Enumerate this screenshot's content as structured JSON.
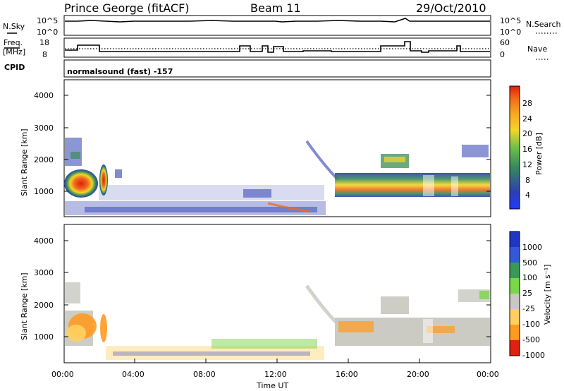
{
  "header": {
    "station": "Prince George (fitACF)",
    "beam": "Beam 11",
    "date": "29/Oct/2010"
  },
  "strip1": {
    "left_label": "N.Sky",
    "right_label": "N.Search",
    "left_ticks": [
      "10^5",
      "10^0"
    ],
    "right_ticks": [
      "10^5",
      "10^0"
    ]
  },
  "strip2": {
    "left_label_line1": "Freq.",
    "left_label_line2": "[MHz]",
    "right_label": "Nave",
    "left_ticks": [
      "18",
      "8"
    ],
    "right_ticks": [
      "60",
      "0"
    ]
  },
  "cpid": {
    "label": "CPID",
    "text": "normalsound (fast) -157"
  },
  "power_panel": {
    "ylabel": "Slant Range [km]",
    "yticks": [
      "4000",
      "3000",
      "2000",
      "1000"
    ],
    "colorbar_label": "Power [dB]",
    "colorbar_ticks": [
      "28",
      "24",
      "20",
      "16",
      "12",
      "8",
      "4"
    ]
  },
  "velocity_panel": {
    "ylabel": "Slant Range [km]",
    "yticks": [
      "4000",
      "3000",
      "2000",
      "1000"
    ],
    "colorbar_label": "Velocity [m s⁻¹]",
    "colorbar_ticks": [
      "1000",
      "500",
      "100",
      "25",
      "-25",
      "-100",
      "-500",
      "-1000"
    ]
  },
  "xaxis": {
    "label": "Time UT",
    "ticks": [
      "00:00",
      "04:00",
      "08:00",
      "12:00",
      "16:00",
      "20:00",
      "00:00"
    ]
  },
  "colors": {
    "power_scale": [
      "#1e3cff",
      "#2d3fb0",
      "#3a8c5a",
      "#6fbf4a",
      "#f3d52a",
      "#f6a623",
      "#f06a1a",
      "#e01e10"
    ],
    "velocity_scale": [
      "#2035c0",
      "#3558d8",
      "#3a9a55",
      "#7bd64a",
      "#c8c8c0",
      "#ffd060",
      "#ff9a20",
      "#e02010"
    ]
  },
  "chart_data": {
    "type": "heatmap",
    "x_range_hours": [
      0,
      24
    ],
    "y_range_km": [
      180,
      4600
    ],
    "freq_mhz": [
      [
        0,
        11.5
      ],
      [
        1.0,
        14.5
      ],
      [
        2.0,
        10
      ],
      [
        10.2,
        14
      ],
      [
        11.2,
        10
      ],
      [
        11.7,
        13
      ],
      [
        12.4,
        10
      ],
      [
        12.9,
        14
      ],
      [
        14.0,
        11
      ],
      [
        17.8,
        11
      ],
      [
        18.0,
        10
      ],
      [
        18.1,
        10
      ],
      [
        18.2,
        11
      ],
      [
        18.7,
        11
      ],
      [
        18.8,
        10
      ],
      [
        19.2,
        10
      ],
      [
        19.3,
        11
      ],
      [
        19.4,
        11
      ],
      [
        19.5,
        10
      ],
      [
        20.0,
        10
      ],
      [
        20.5,
        11
      ],
      [
        21.2,
        11
      ],
      [
        21.3,
        10
      ],
      [
        22.0,
        10
      ],
      [
        22.5,
        11
      ],
      [
        22.8,
        10
      ],
      [
        24,
        11.5
      ]
    ],
    "power_regions": [
      {
        "t": [
          0.3,
          1.8
        ],
        "r": [
          800,
          1700
        ],
        "level": "high"
      },
      {
        "t": [
          1.9,
          2.5
        ],
        "r": [
          700,
          1700
        ],
        "level": "high"
      },
      {
        "t": [
          0.2,
          0.8
        ],
        "r": [
          1700,
          2500
        ],
        "level": "low"
      },
      {
        "t": [
          15.0,
          24.0
        ],
        "r": [
          900,
          1500
        ],
        "level": "mid"
      },
      {
        "t": [
          0.5,
          15
        ],
        "r": [
          200,
          600
        ],
        "level": "low"
      }
    ]
  }
}
